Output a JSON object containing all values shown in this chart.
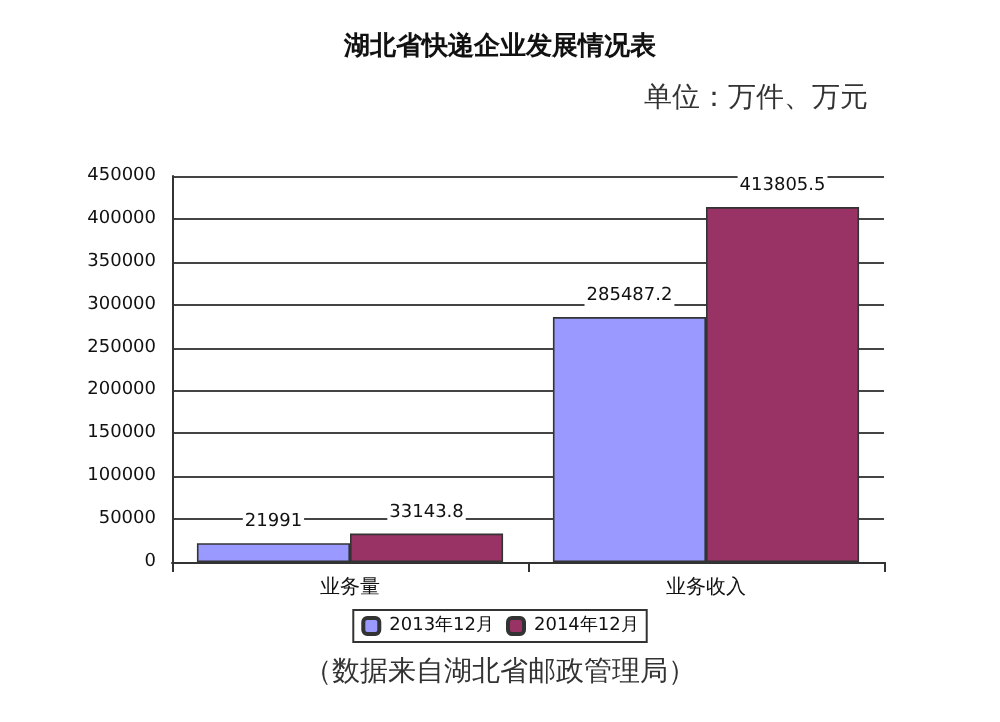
{
  "chart_data": {
    "type": "bar",
    "title": "湖北省快递企业发展情况表",
    "annotations": [
      "单位：万件、万元",
      "（数据来自湖北省邮政管理局）"
    ],
    "categories": [
      "业务量",
      "业务收入"
    ],
    "series": [
      {
        "name": "2013年12月",
        "color": "#9999ff",
        "values": [
          21991,
          285487.2
        ]
      },
      {
        "name": "2014年12月",
        "color": "#993366",
        "values": [
          33143.8,
          413805.5
        ]
      }
    ],
    "ylim": [
      0,
      450000
    ],
    "yticks": [
      0,
      50000,
      100000,
      150000,
      200000,
      250000,
      300000,
      350000,
      400000,
      450000
    ],
    "grid": "y",
    "legend": "bottom",
    "data_labels": true
  }
}
